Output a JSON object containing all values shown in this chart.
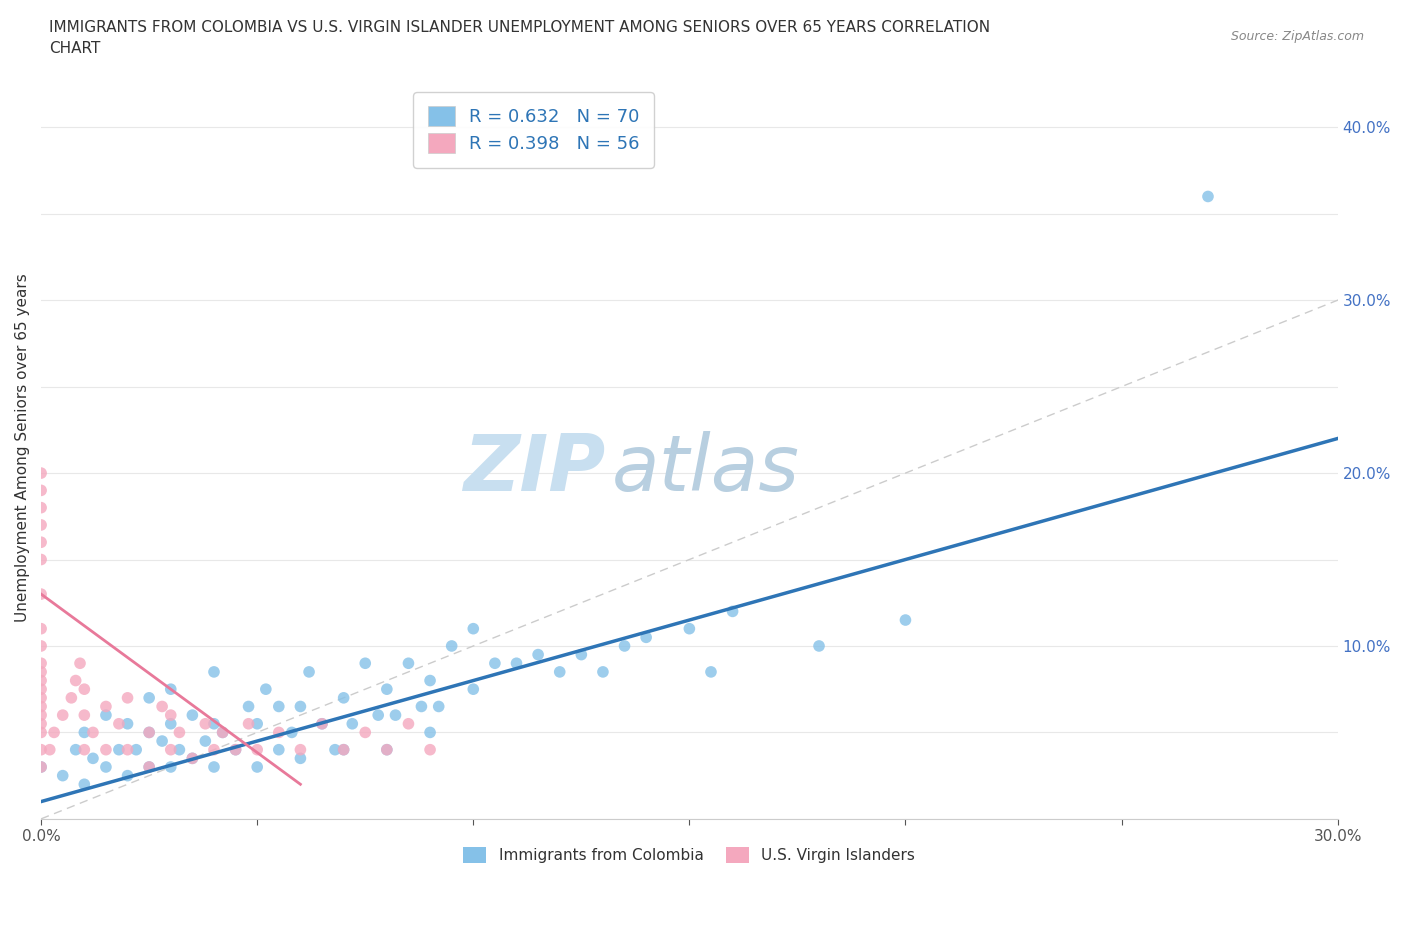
{
  "title_line1": "IMMIGRANTS FROM COLOMBIA VS U.S. VIRGIN ISLANDER UNEMPLOYMENT AMONG SENIORS OVER 65 YEARS CORRELATION",
  "title_line2": "CHART",
  "source_text": "Source: ZipAtlas.com",
  "ylabel": "Unemployment Among Seniors over 65 years",
  "r_colombia": 0.632,
  "n_colombia": 70,
  "r_virgin": 0.398,
  "n_virgin": 56,
  "colombia_color": "#85c1e8",
  "virgin_color": "#f4a8be",
  "colombia_line_color": "#2e75b6",
  "virgin_line_color": "#e8799a",
  "diagonal_color": "#cccccc",
  "watermark_zip_color": "#c8dff0",
  "watermark_atlas_color": "#b8cfe0",
  "xlim": [
    0.0,
    0.3
  ],
  "ylim": [
    0.0,
    0.43
  ],
  "colombia_scatter_x": [
    0.0,
    0.005,
    0.008,
    0.01,
    0.01,
    0.012,
    0.015,
    0.015,
    0.018,
    0.02,
    0.02,
    0.022,
    0.025,
    0.025,
    0.025,
    0.028,
    0.03,
    0.03,
    0.03,
    0.032,
    0.035,
    0.035,
    0.038,
    0.04,
    0.04,
    0.04,
    0.042,
    0.045,
    0.048,
    0.05,
    0.05,
    0.052,
    0.055,
    0.055,
    0.058,
    0.06,
    0.06,
    0.062,
    0.065,
    0.068,
    0.07,
    0.07,
    0.072,
    0.075,
    0.078,
    0.08,
    0.08,
    0.082,
    0.085,
    0.088,
    0.09,
    0.09,
    0.092,
    0.095,
    0.1,
    0.1,
    0.105,
    0.11,
    0.115,
    0.12,
    0.125,
    0.13,
    0.135,
    0.14,
    0.15,
    0.155,
    0.16,
    0.18,
    0.2,
    0.27
  ],
  "colombia_scatter_y": [
    0.03,
    0.025,
    0.04,
    0.02,
    0.05,
    0.035,
    0.03,
    0.06,
    0.04,
    0.025,
    0.055,
    0.04,
    0.03,
    0.05,
    0.07,
    0.045,
    0.03,
    0.055,
    0.075,
    0.04,
    0.035,
    0.06,
    0.045,
    0.03,
    0.055,
    0.085,
    0.05,
    0.04,
    0.065,
    0.03,
    0.055,
    0.075,
    0.04,
    0.065,
    0.05,
    0.035,
    0.065,
    0.085,
    0.055,
    0.04,
    0.04,
    0.07,
    0.055,
    0.09,
    0.06,
    0.04,
    0.075,
    0.06,
    0.09,
    0.065,
    0.05,
    0.08,
    0.065,
    0.1,
    0.075,
    0.11,
    0.09,
    0.09,
    0.095,
    0.085,
    0.095,
    0.085,
    0.1,
    0.105,
    0.11,
    0.085,
    0.12,
    0.1,
    0.115,
    0.36
  ],
  "virgin_scatter_x": [
    0.0,
    0.0,
    0.0,
    0.0,
    0.0,
    0.0,
    0.0,
    0.0,
    0.0,
    0.0,
    0.0,
    0.0,
    0.0,
    0.0,
    0.0,
    0.0,
    0.0,
    0.0,
    0.0,
    0.0,
    0.002,
    0.003,
    0.005,
    0.007,
    0.008,
    0.009,
    0.01,
    0.01,
    0.01,
    0.012,
    0.015,
    0.015,
    0.018,
    0.02,
    0.02,
    0.025,
    0.025,
    0.028,
    0.03,
    0.03,
    0.032,
    0.035,
    0.038,
    0.04,
    0.042,
    0.045,
    0.048,
    0.05,
    0.055,
    0.06,
    0.065,
    0.07,
    0.075,
    0.08,
    0.085,
    0.09
  ],
  "virgin_scatter_y": [
    0.03,
    0.04,
    0.05,
    0.055,
    0.06,
    0.065,
    0.07,
    0.075,
    0.08,
    0.085,
    0.09,
    0.1,
    0.11,
    0.13,
    0.15,
    0.16,
    0.17,
    0.18,
    0.19,
    0.2,
    0.04,
    0.05,
    0.06,
    0.07,
    0.08,
    0.09,
    0.04,
    0.06,
    0.075,
    0.05,
    0.04,
    0.065,
    0.055,
    0.04,
    0.07,
    0.05,
    0.03,
    0.065,
    0.04,
    0.06,
    0.05,
    0.035,
    0.055,
    0.04,
    0.05,
    0.04,
    0.055,
    0.04,
    0.05,
    0.04,
    0.055,
    0.04,
    0.05,
    0.04,
    0.055,
    0.04
  ],
  "colombia_trend_x": [
    0.0,
    0.3
  ],
  "colombia_trend_y": [
    0.01,
    0.22
  ],
  "virgin_trend_x": [
    0.0,
    0.06
  ],
  "virgin_trend_y": [
    0.13,
    0.02
  ],
  "legend_colombia_label": "Immigrants from Colombia",
  "legend_virgin_label": "U.S. Virgin Islanders",
  "background_color": "#ffffff",
  "grid_color": "#e8e8e8"
}
